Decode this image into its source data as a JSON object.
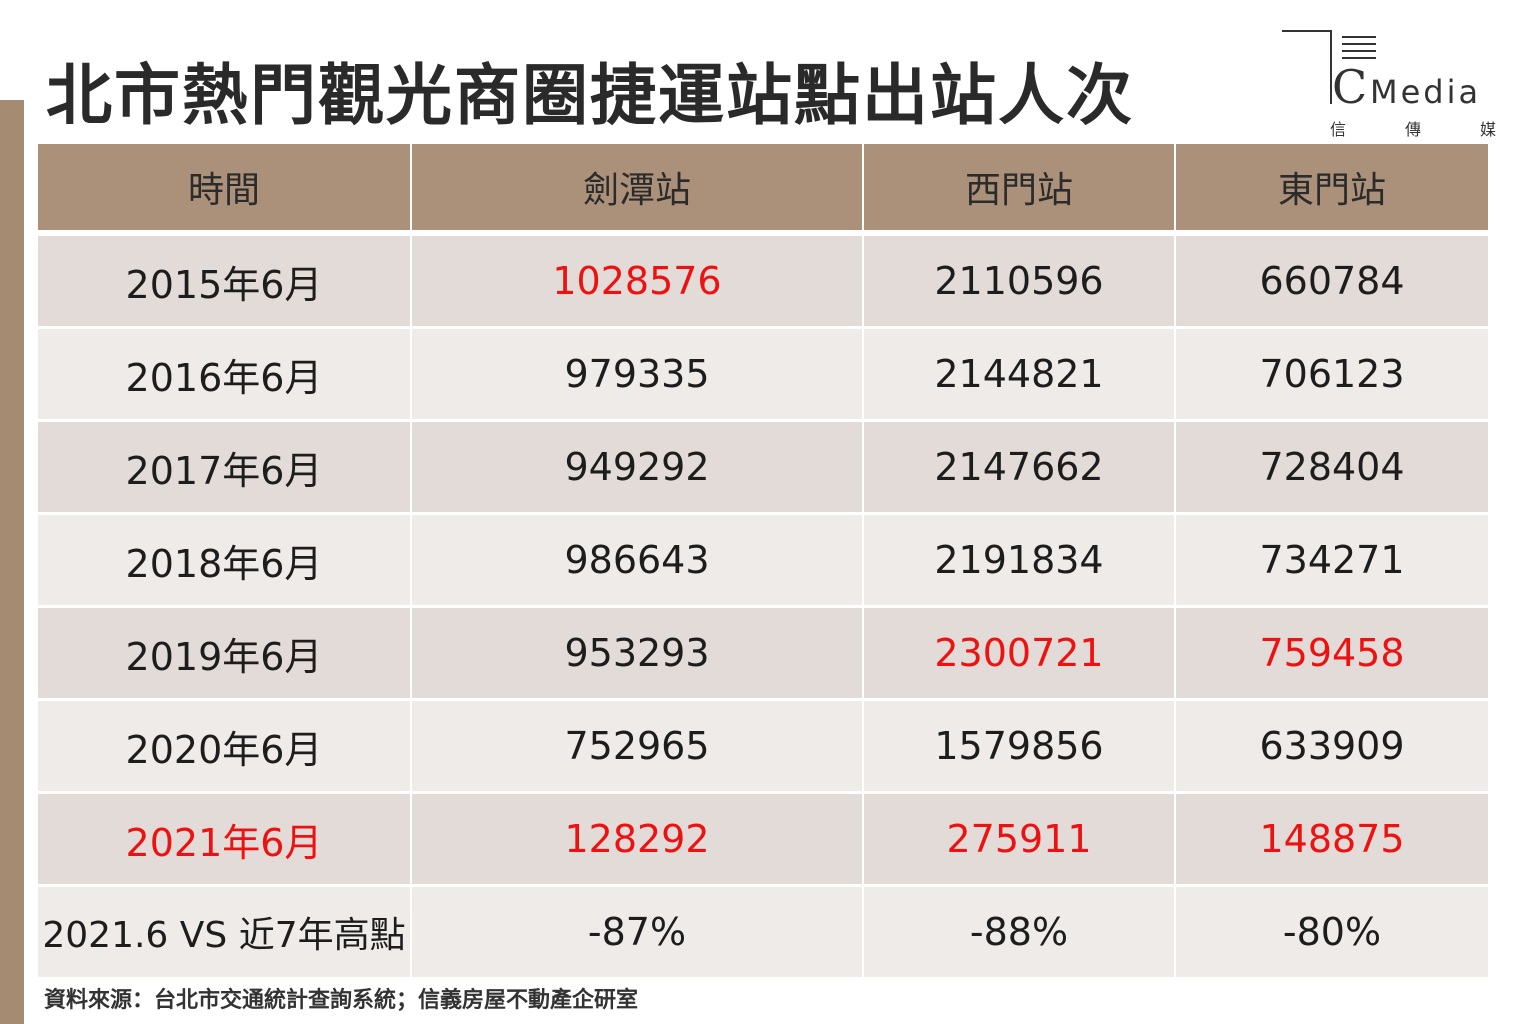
{
  "title": "北市熱門觀光商圈捷運站點出站人次",
  "logo": {
    "word_initial": "C",
    "word_rest": "Media",
    "sub": [
      "信",
      "傳",
      "媒"
    ]
  },
  "colors": {
    "header_bg": "#ab917a",
    "row_dark": "#e2dbd7",
    "row_light": "#efebe8",
    "highlight": "#ee1111",
    "side_bar": "#a48b72"
  },
  "chart_data": {
    "type": "table",
    "columns": [
      "時間",
      "劍潭站",
      "西門站",
      "東門站"
    ],
    "rows": [
      {
        "label": "2015年6月",
        "values": [
          "1028576",
          "2110596",
          "660784"
        ],
        "highlight": [
          false,
          true,
          false,
          false
        ]
      },
      {
        "label": "2016年6月",
        "values": [
          "979335",
          "2144821",
          "706123"
        ],
        "highlight": [
          false,
          false,
          false,
          false
        ]
      },
      {
        "label": "2017年6月",
        "values": [
          "949292",
          "2147662",
          "728404"
        ],
        "highlight": [
          false,
          false,
          false,
          false
        ]
      },
      {
        "label": "2018年6月",
        "values": [
          "986643",
          "2191834",
          "734271"
        ],
        "highlight": [
          false,
          false,
          false,
          false
        ]
      },
      {
        "label": "2019年6月",
        "values": [
          "953293",
          "2300721",
          "759458"
        ],
        "highlight": [
          false,
          false,
          true,
          true
        ]
      },
      {
        "label": "2020年6月",
        "values": [
          "752965",
          "1579856",
          "633909"
        ],
        "highlight": [
          false,
          false,
          false,
          false
        ]
      },
      {
        "label": "2021年6月",
        "values": [
          "128292",
          "275911",
          "148875"
        ],
        "highlight": [
          true,
          true,
          true,
          true
        ]
      }
    ],
    "summary": {
      "label": "2021.6 VS 近7年高點",
      "values": [
        "-87%",
        "-88%",
        "-80%"
      ]
    }
  },
  "source": "資料來源：台北市交通統計查詢系統；信義房屋不動產企研室"
}
